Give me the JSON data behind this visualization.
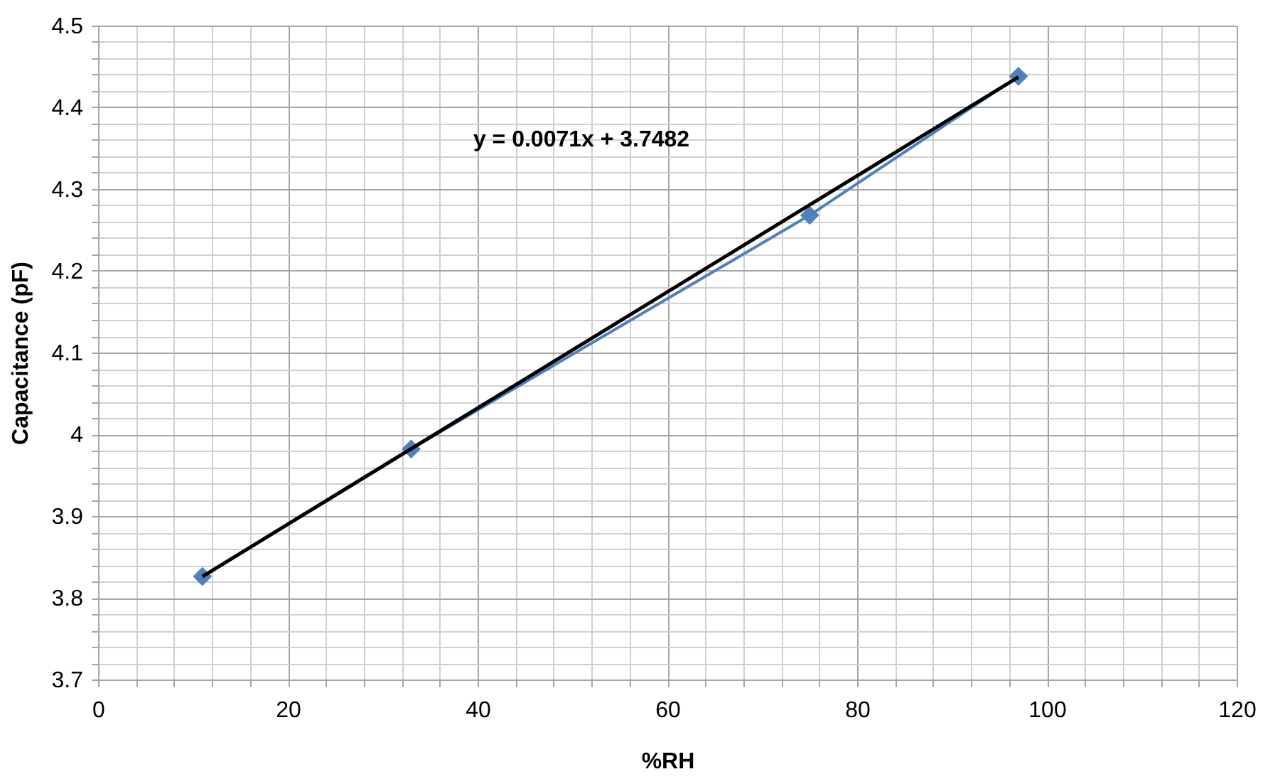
{
  "chart_data": {
    "type": "line",
    "xlabel": "%RH",
    "ylabel": "Capacitance (pF)",
    "annotations": [
      "y = 0.0071x + 3.7482"
    ],
    "xlim": [
      0,
      120
    ],
    "ylim": [
      3.7,
      4.5
    ],
    "xticks": [
      0,
      {
        "value": 4,
        "label": null
      },
      {
        "value": 8,
        "label": null
      },
      {
        "value": 12,
        "label": null
      },
      {
        "value": 16,
        "label": null
      },
      20,
      {
        "value": 24,
        "label": null
      },
      {
        "value": 28,
        "label": null
      },
      {
        "value": 32,
        "label": null
      },
      {
        "value": 36,
        "label": null
      },
      40,
      {
        "value": 44,
        "label": null
      },
      {
        "value": 48,
        "label": null
      },
      {
        "value": 52,
        "label": null
      },
      {
        "value": 56,
        "label": null
      },
      60,
      {
        "value": 64,
        "label": null
      },
      {
        "value": 68,
        "label": null
      },
      {
        "value": 72,
        "label": null
      },
      {
        "value": 76,
        "label": null
      },
      80,
      {
        "value": 84,
        "label": null
      },
      {
        "value": 88,
        "label": null
      },
      {
        "value": 92,
        "label": null
      },
      {
        "value": 96,
        "label": null
      },
      100,
      {
        "value": 104,
        "label": null
      },
      {
        "value": 108,
        "label": null
      },
      {
        "value": 112,
        "label": null
      },
      {
        "value": 116,
        "label": null
      },
      120
    ],
    "yticks": [
      3.7,
      {
        "value": 3.72,
        "label": null
      },
      {
        "value": 3.74,
        "label": null
      },
      {
        "value": 3.76,
        "label": null
      },
      {
        "value": 3.78,
        "label": null
      },
      3.8,
      {
        "value": 3.82,
        "label": null
      },
      {
        "value": 3.84,
        "label": null
      },
      {
        "value": 3.86,
        "label": null
      },
      {
        "value": 3.88,
        "label": null
      },
      3.9,
      {
        "value": 3.92,
        "label": null
      },
      {
        "value": 3.94,
        "label": null
      },
      {
        "value": 3.96,
        "label": null
      },
      {
        "value": 3.98,
        "label": null
      },
      4,
      {
        "value": 4.02,
        "label": null
      },
      {
        "value": 4.04,
        "label": null
      },
      {
        "value": 4.06,
        "label": null
      },
      {
        "value": 4.08,
        "label": null
      },
      4.1,
      {
        "value": 4.12,
        "label": null
      },
      {
        "value": 4.14,
        "label": null
      },
      {
        "value": 4.16,
        "label": null
      },
      {
        "value": 4.18,
        "label": null
      },
      4.2,
      {
        "value": 4.22,
        "label": null
      },
      {
        "value": 4.24,
        "label": null
      },
      {
        "value": 4.26,
        "label": null
      },
      {
        "value": 4.28,
        "label": null
      },
      4.3,
      {
        "value": 4.32,
        "label": null
      },
      {
        "value": 4.34,
        "label": null
      },
      {
        "value": 4.36,
        "label": null
      },
      {
        "value": 4.38,
        "label": null
      },
      4.4,
      {
        "value": 4.42,
        "label": null
      },
      {
        "value": 4.44,
        "label": null
      },
      {
        "value": 4.46,
        "label": null
      },
      {
        "value": 4.48,
        "label": null
      },
      4.5
    ],
    "grid": true,
    "series": [
      {
        "color": "#4f81bd",
        "marker": "diamond",
        "line_style": "solid",
        "x": [
          11,
          33,
          75,
          97
        ],
        "values": [
          3.826,
          3.982,
          4.268,
          4.438
        ]
      },
      {
        "type": "line",
        "color": "#000000",
        "marker": "none",
        "line_style": "solid",
        "x": [
          11,
          97
        ],
        "values": [
          3.826,
          4.437
        ]
      }
    ]
  }
}
